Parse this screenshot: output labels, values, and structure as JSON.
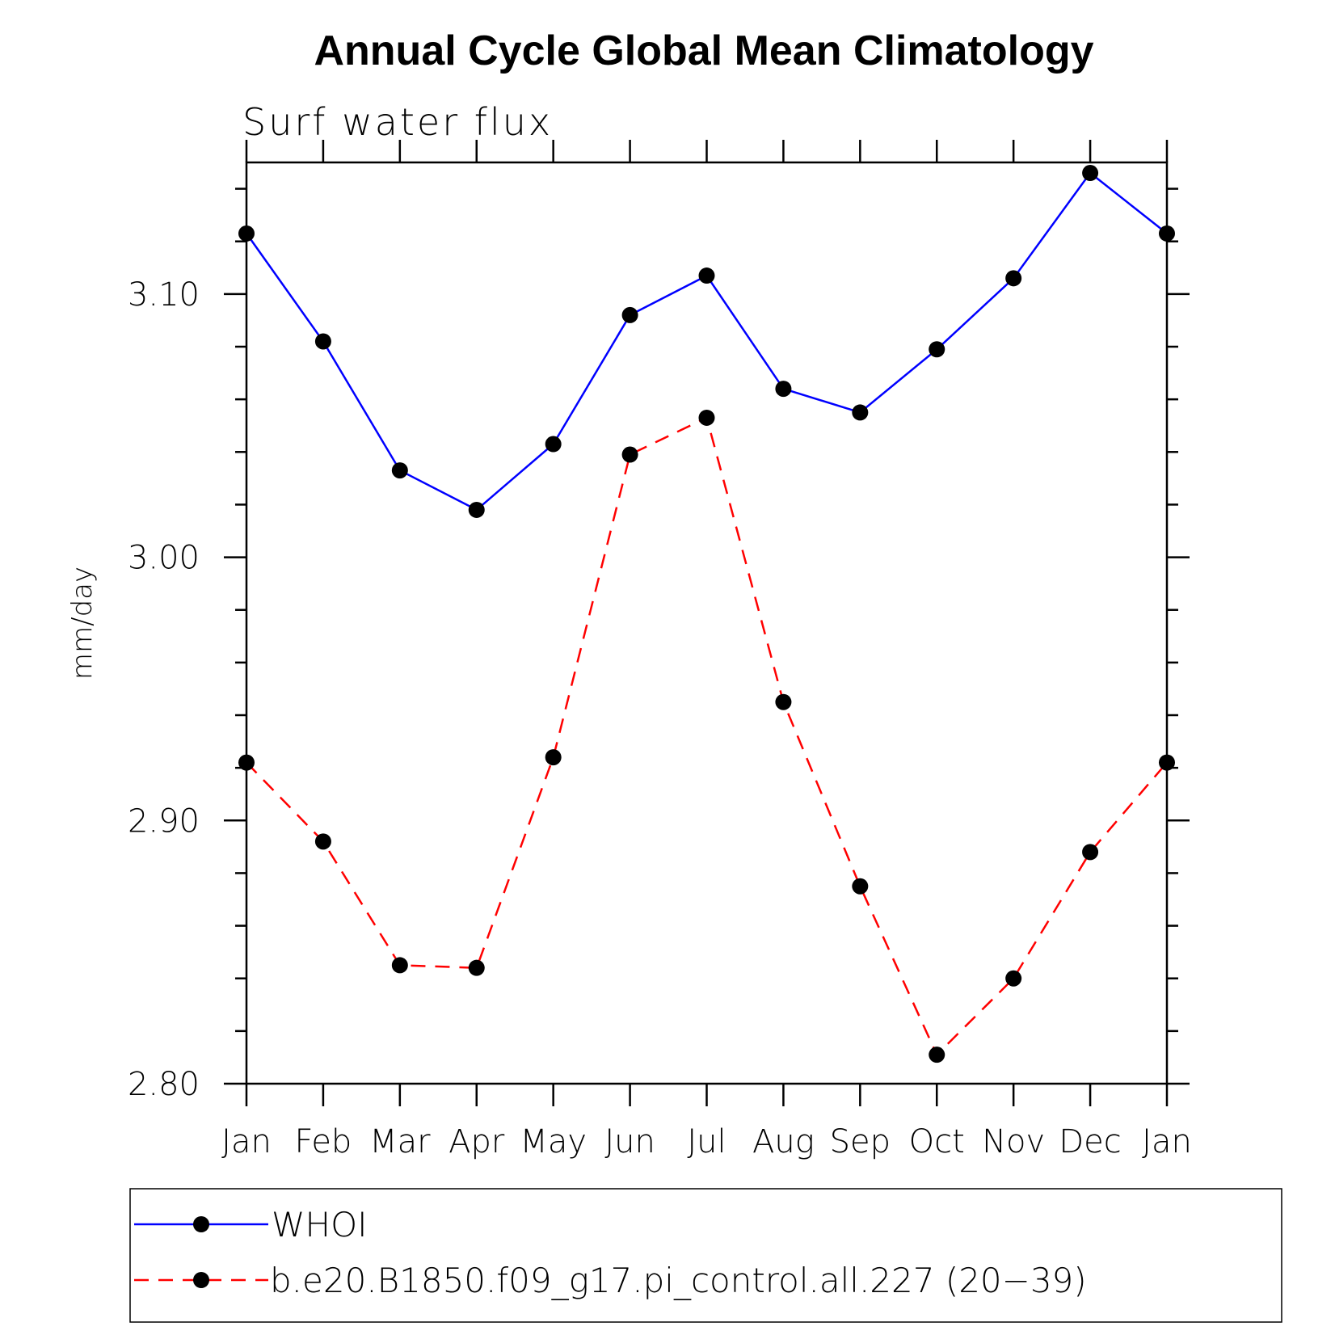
{
  "chart_data": {
    "type": "line",
    "title": "Annual Cycle Global Mean Climatology",
    "subtitle": "Surf  water  flux",
    "xlabel": "",
    "ylabel": "mm/day",
    "categories": [
      "Jan",
      "Feb",
      "Mar",
      "Apr",
      "May",
      "Jun",
      "Jul",
      "Aug",
      "Sep",
      "Oct",
      "Nov",
      "Dec",
      "Jan"
    ],
    "ylim": [
      2.8,
      3.15
    ],
    "yticks": [
      "2.80",
      "2.90",
      "3.00",
      "3.10"
    ],
    "ytick_values": [
      2.8,
      2.9,
      3.0,
      3.1
    ],
    "series": [
      {
        "name": "WHOI",
        "color": "#0000ff",
        "style": "solid",
        "values": [
          3.123,
          3.082,
          3.033,
          3.018,
          3.043,
          3.092,
          3.107,
          3.064,
          3.055,
          3.079,
          3.106,
          3.146,
          3.123
        ]
      },
      {
        "name": "b.e20.B1850.f09_g17.pi_control.all.227 (20-39)",
        "color": "#ff0000",
        "style": "dashed",
        "values": [
          2.922,
          2.892,
          2.845,
          2.844,
          2.924,
          3.039,
          3.053,
          2.945,
          2.875,
          2.811,
          2.84,
          2.888,
          2.922
        ]
      }
    ],
    "legend": {
      "position": "bottom",
      "entries": [
        "WHOI",
        "b.e20.B1850.f09_g17.pi_control.all.227 (20−39)"
      ]
    }
  }
}
